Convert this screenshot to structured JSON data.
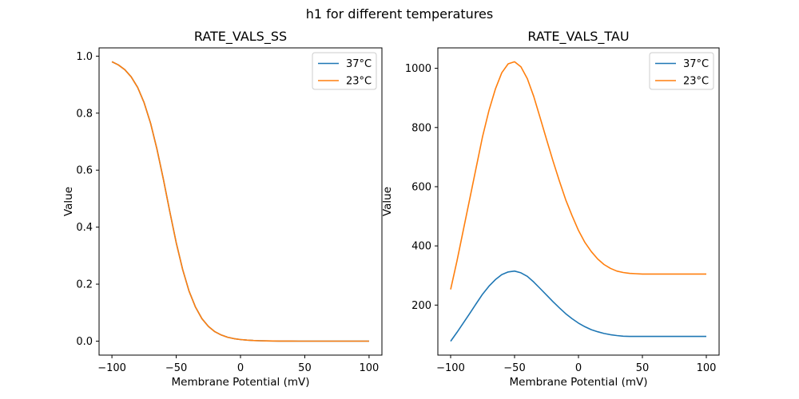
{
  "figure": {
    "suptitle": "h1 for different temperatures",
    "background_color": "#ffffff",
    "text_color": "#000000",
    "spine_color": "#000000",
    "legend_border_color": "#cccccc"
  },
  "chart_data": [
    {
      "type": "line",
      "title": "RATE_VALS_SS",
      "xlabel": "Membrane Potential (mV)",
      "ylabel": "Value",
      "grid": false,
      "legend_position": "upper-right",
      "xlim": [
        -110,
        110
      ],
      "ylim": [
        -0.049,
        1.029
      ],
      "xticks": [
        -100,
        -50,
        0,
        50,
        100
      ],
      "xtick_labels": [
        "−100",
        "−50",
        "0",
        "50",
        "100"
      ],
      "yticks": [
        0.0,
        0.2,
        0.4,
        0.6,
        0.8,
        1.0
      ],
      "ytick_labels": [
        "0.0",
        "0.2",
        "0.4",
        "0.6",
        "0.8",
        "1.0"
      ],
      "x": [
        -100,
        -95,
        -90,
        -85,
        -80,
        -75,
        -70,
        -65,
        -60,
        -55,
        -50,
        -45,
        -40,
        -35,
        -30,
        -25,
        -20,
        -15,
        -10,
        -5,
        0,
        5,
        10,
        15,
        20,
        25,
        30,
        35,
        40,
        45,
        50,
        55,
        60,
        65,
        70,
        75,
        80,
        85,
        90,
        95,
        100
      ],
      "series": [
        {
          "name": "37°C",
          "color": "#1f77b4",
          "values": [
            0.9803,
            0.9694,
            0.9526,
            0.9273,
            0.89,
            0.8371,
            0.7653,
            0.6742,
            0.5678,
            0.4547,
            0.3461,
            0.2514,
            0.1757,
            0.1192,
            0.0791,
            0.0517,
            0.0334,
            0.0215,
            0.0138,
            0.0088,
            0.0056,
            0.0036,
            0.0023,
            0.0014,
            0.0009,
            0.0006,
            0.0004,
            0.0002,
            0.0002,
            0.0001,
            0.0001,
            0.0,
            0.0,
            0.0,
            0.0,
            0.0,
            0.0,
            0.0,
            0.0,
            0.0,
            0.0
          ]
        },
        {
          "name": "23°C",
          "color": "#ff7f0e",
          "values": [
            0.9803,
            0.9694,
            0.9526,
            0.9273,
            0.89,
            0.8371,
            0.7653,
            0.6742,
            0.5678,
            0.4547,
            0.3461,
            0.2514,
            0.1757,
            0.1192,
            0.0791,
            0.0517,
            0.0334,
            0.0215,
            0.0138,
            0.0088,
            0.0056,
            0.0036,
            0.0023,
            0.0014,
            0.0009,
            0.0006,
            0.0004,
            0.0002,
            0.0002,
            0.0001,
            0.0001,
            0.0,
            0.0,
            0.0,
            0.0,
            0.0,
            0.0,
            0.0,
            0.0,
            0.0,
            0.0
          ]
        }
      ],
      "legend": {
        "entries": [
          "37°C",
          "23°C"
        ]
      }
    },
    {
      "type": "line",
      "title": "RATE_VALS_TAU",
      "xlabel": "Membrane Potential (mV)",
      "ylabel": "Value",
      "grid": false,
      "legend_position": "upper-right",
      "xlim": [
        -110,
        110
      ],
      "ylim": [
        31,
        1069
      ],
      "xticks": [
        -100,
        -50,
        0,
        50,
        100
      ],
      "xtick_labels": [
        "−100",
        "−50",
        "0",
        "50",
        "100"
      ],
      "yticks": [
        200,
        400,
        600,
        800,
        1000
      ],
      "ytick_labels": [
        "200",
        "400",
        "600",
        "800",
        "1000"
      ],
      "x": [
        -100,
        -95,
        -90,
        -85,
        -80,
        -75,
        -70,
        -65,
        -60,
        -55,
        -50,
        -45,
        -40,
        -35,
        -30,
        -25,
        -20,
        -15,
        -10,
        -5,
        0,
        5,
        10,
        15,
        20,
        25,
        30,
        35,
        40,
        45,
        50,
        55,
        60,
        65,
        70,
        75,
        80,
        85,
        90,
        95,
        100
      ],
      "series": [
        {
          "name": "37°C",
          "color": "#1f77b4",
          "values": [
            78,
            108,
            140,
            172,
            205,
            237,
            264,
            286,
            303,
            312,
            315,
            309,
            297,
            278,
            256,
            234,
            212,
            191,
            171,
            154,
            139,
            127,
            117,
            110,
            104,
            100,
            97,
            95,
            94,
            94,
            94,
            94,
            94,
            94,
            94,
            94,
            94,
            94,
            94,
            94,
            94
          ]
        },
        {
          "name": "23°C",
          "color": "#ff7f0e",
          "values": [
            253,
            350,
            455,
            560,
            665,
            770,
            858,
            930,
            985,
            1015,
            1022,
            1005,
            965,
            905,
            833,
            760,
            688,
            620,
            556,
            502,
            452,
            412,
            381,
            356,
            337,
            324,
            315,
            310,
            307,
            306,
            305,
            305,
            305,
            305,
            305,
            305,
            305,
            305,
            305,
            305,
            305
          ]
        }
      ],
      "legend": {
        "entries": [
          "37°C",
          "23°C"
        ]
      }
    }
  ]
}
